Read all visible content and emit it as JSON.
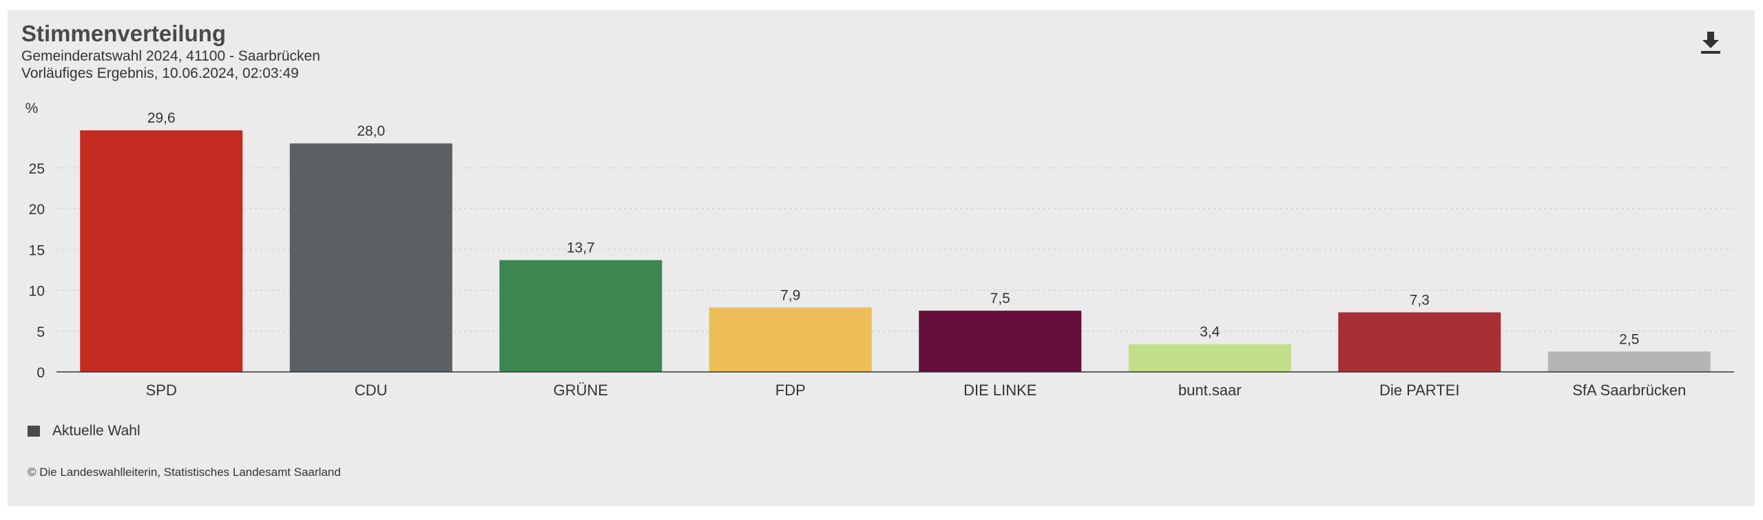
{
  "header": {
    "title": "Stimmenverteilung",
    "subtitle_line1": "Gemeinderatswahl 2024, 41100 - Saarbrücken",
    "subtitle_line2": "Vorläufiges Ergebnis, 10.06.2024, 02:03:49",
    "download_icon": "download-icon"
  },
  "chart_data": {
    "type": "bar",
    "ylabel": "%",
    "ylim": [
      0,
      30
    ],
    "yticks": [
      0,
      5,
      10,
      15,
      20,
      25
    ],
    "grid": true,
    "categories": [
      "SPD",
      "CDU",
      "GRÜNE",
      "FDP",
      "DIE LINKE",
      "bunt.saar",
      "Die PARTEI",
      "SfA Saarbrücken"
    ],
    "series": [
      {
        "name": "Aktuelle Wahl",
        "values": [
          29.6,
          28.0,
          13.7,
          7.9,
          7.5,
          3.4,
          7.3,
          2.5
        ],
        "labels": [
          "29,6",
          "28,0",
          "13,7",
          "7,9",
          "7,5",
          "3,4",
          "7,3",
          "2,5"
        ],
        "colors": [
          "#c22a22",
          "#5a6064",
          "#3b8651",
          "#edbd58",
          "#670f3b",
          "#c1de8a",
          "#a82f33",
          "#b5b5b5"
        ]
      }
    ]
  },
  "legend": {
    "label": "Aktuelle Wahl",
    "color": "#4a4a4a"
  },
  "footer": {
    "source": "© Die Landeswahlleiterin, Statistisches Landesamt Saarland"
  }
}
